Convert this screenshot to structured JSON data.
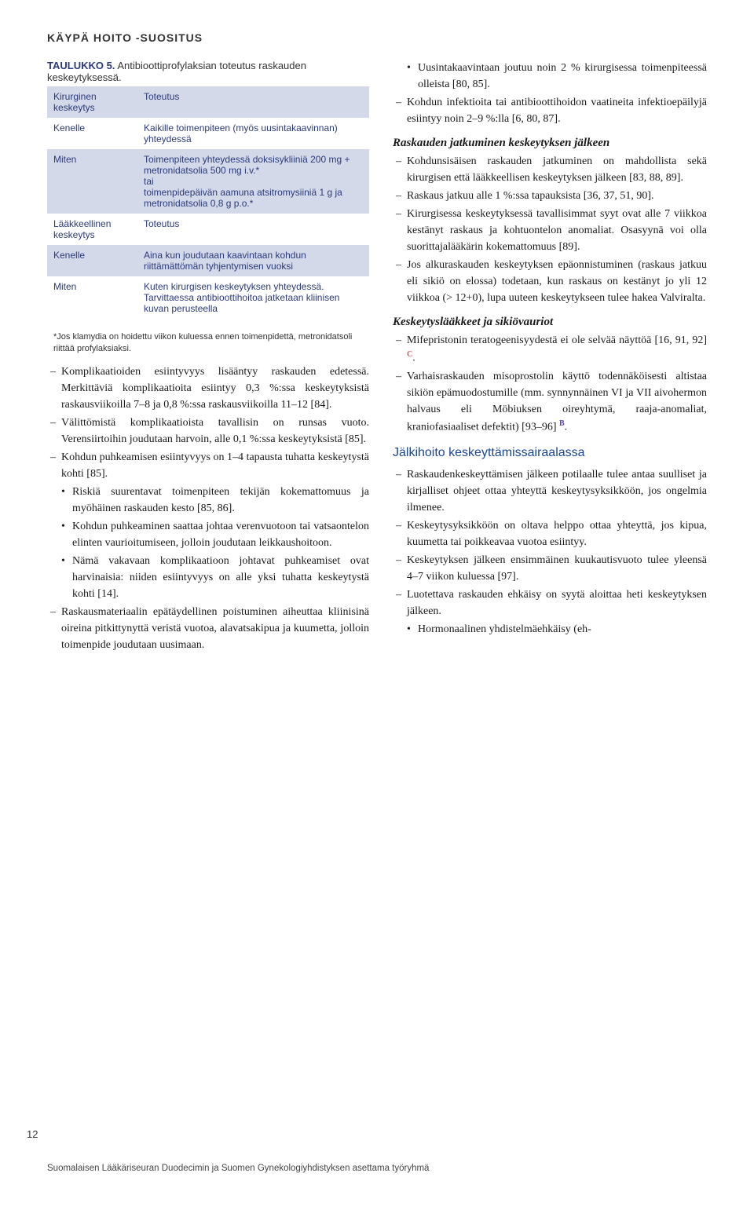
{
  "header": "KÄYPÄ HOITO -SUOSITUS",
  "table": {
    "title_prefix": "TAULUKKO 5.",
    "title_rest": " Antibioottiprofylaksian toteutus raskauden keskeytyksessä.",
    "rows": [
      [
        "Kirurginen keskeytys",
        "Toteutus"
      ],
      [
        "Kenelle",
        "Kaikille toimenpiteen (myös uusintakaavinnan) yhteydessä"
      ],
      [
        "Miten",
        "Toimenpiteen yhteydessä doksisykliiniä 200 mg + metronidatsolia 500 mg i.v.*\ntai\ntoimenpidepäivän aamuna atsitromysiiniä 1 g ja metronidatsolia 0,8 g p.o.*"
      ],
      [
        "Lääkkeellinen keskeytys",
        "Toteutus"
      ],
      [
        "Kenelle",
        "Aina kun joudutaan kaavintaan kohdun riittämättömän tyhjentymisen vuoksi"
      ],
      [
        "Miten",
        "Kuten kirurgisen keskeytyksen yhteydessä. Tarvittaessa antibioottihoitoa jatketaan kliinisen kuvan perusteella"
      ]
    ],
    "footnote": "*Jos klamydia on hoidettu viikon kuluessa ennen toimenpidettä, metronidatsoli riittää profylaksiaksi."
  },
  "left": {
    "items": [
      "Komplikaatioiden esiintyvyys lisääntyy raskauden edetessä. Merkittäviä komplikaatioita esiintyy 0,3 %:ssa keskeytyksistä raskausviikoilla 7–8 ja 0,8 %:ssa raskausviikoilla 11–12 [84].",
      "Välittömistä komplikaatioista tavallisin on runsas vuoto. Verensiirtoihin joudutaan harvoin, alle 0,1 %:ssa keskeytyksistä [85].",
      "Kohdun puhkeamisen esiintyvyys on 1–4 tapausta tuhatta keskeytystä kohti [85]."
    ],
    "subitems": [
      "Riskiä suurentavat toimenpiteen tekijän kokemattomuus ja myöhäinen raskauden kesto [85, 86].",
      "Kohdun puhkeaminen saattaa johtaa verenvuotoon tai vatsaontelon elinten vaurioitumiseen, jolloin joudutaan leikkaushoitoon.",
      "Nämä vakavaan komplikaatioon johtavat puhkeamiset ovat harvinaisia: niiden esiintyvyys on alle yksi tuhatta keskeytystä kohti [14]."
    ],
    "last": "Raskausmateriaalin epätäydellinen poistuminen aiheuttaa kliinisinä oireina pitkittynyttä veristä vuotoa, alavatsakipua ja kuumetta, jolloin toimenpide joudutaan uusimaan."
  },
  "right": {
    "intro": [
      "Uusintakaavintaan joutuu noin 2 % kirurgisessa toimenpiteessä olleista [80, 85].",
      "Kohdun infektioita tai antibioottihoidon vaatineita infektioepäilyjä esiintyy noin 2–9 %:lla [6, 80, 87]."
    ],
    "section1_title": "Raskauden jatkuminen keskeytyksen jälkeen",
    "section1": [
      "Kohdunsisäisen raskauden jatkuminen on mahdollista sekä kirurgisen että lääkkeellisen keskeytyksen jälkeen [83, 88, 89].",
      "Raskaus jatkuu alle 1 %:ssa tapauksista [36, 37, 51, 90].",
      "Kirurgisessa keskeytyksessä tavallisimmat syyt ovat alle 7 viikkoa kestänyt raskaus ja kohtuontelon anomaliat. Osasyynä voi olla suorittajalääkärin kokemattomuus [89].",
      "Jos alkuraskauden keskeytyksen epäonnistuminen (raskaus jatkuu eli sikiö on elossa) todetaan, kun raskaus on kestänyt jo yli 12 viikkoa (> 12+0), lupa uuteen keskeytykseen tulee hakea Valviralta."
    ],
    "section2_title": "Keskeytyslääkkeet ja sikiövauriot",
    "section2_a": "Mifepristonin teratogeenisyydestä ei ole selvää näyttöä [16, 91, 92] ",
    "section2_b": "Varhaisraskauden misoprostolin käyttö todennäköisesti altistaa sikiön epämuodostumille (mm. synnynnäinen VI ja VII aivohermon halvaus eli Möbiuksen oireyhtymä, raaja-anomaliat, kraniofasiaaliset defektit) [93–96] ",
    "section3_title": "Jälkihoito keskeyttämissairaalassa",
    "section3": [
      "Raskaudenkeskeyttämisen jälkeen potilaalle tulee antaa suulliset ja kirjalliset ohjeet ottaa yhteyttä keskeytysyksikköön, jos ongelmia ilmenee.",
      "Keskeytysyksikköön on oltava helppo ottaa yhteyttä, jos kipua, kuumetta tai poikkeavaa vuotoa esiintyy.",
      "Keskeytyksen jälkeen ensimmäinen kuukautisvuoto tulee yleensä 4–7 viikon kuluessa [97].",
      "Luotettava raskauden ehkäisy on syytä aloittaa heti keskeytyksen jälkeen."
    ],
    "section3_sub": "Hormonaalinen yhdistelmäehkäisy (eh-"
  },
  "page_number": "12",
  "footer": "Suomalaisen Lääkäriseuran Duodecimin ja Suomen Gynekologiyhdistyksen asettama työryhmä"
}
